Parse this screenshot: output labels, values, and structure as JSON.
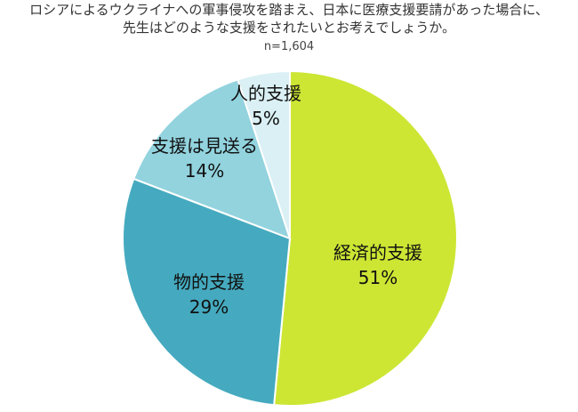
{
  "chart_data": {
    "type": "pie",
    "title_line1": "ロシアによるウクライナへの軍事侵攻を踏まえ、日本に医療支援要請があった場合に、",
    "title_line2": "先生はどのような支援をされたいとお考えでしょうか。",
    "subtitle": "n=1,604",
    "slices": [
      {
        "label": "経済的支援",
        "percent_label": "51%",
        "value": 51,
        "color": "#cde634"
      },
      {
        "label": "物的支援",
        "percent_label": "29%",
        "value": 29,
        "color": "#45aabf"
      },
      {
        "label": "支援は見送る",
        "percent_label": "14%",
        "value": 14,
        "color": "#92d3de"
      },
      {
        "label": "人的支援",
        "percent_label": "5%",
        "value": 5,
        "color": "#daf0f4"
      }
    ]
  }
}
